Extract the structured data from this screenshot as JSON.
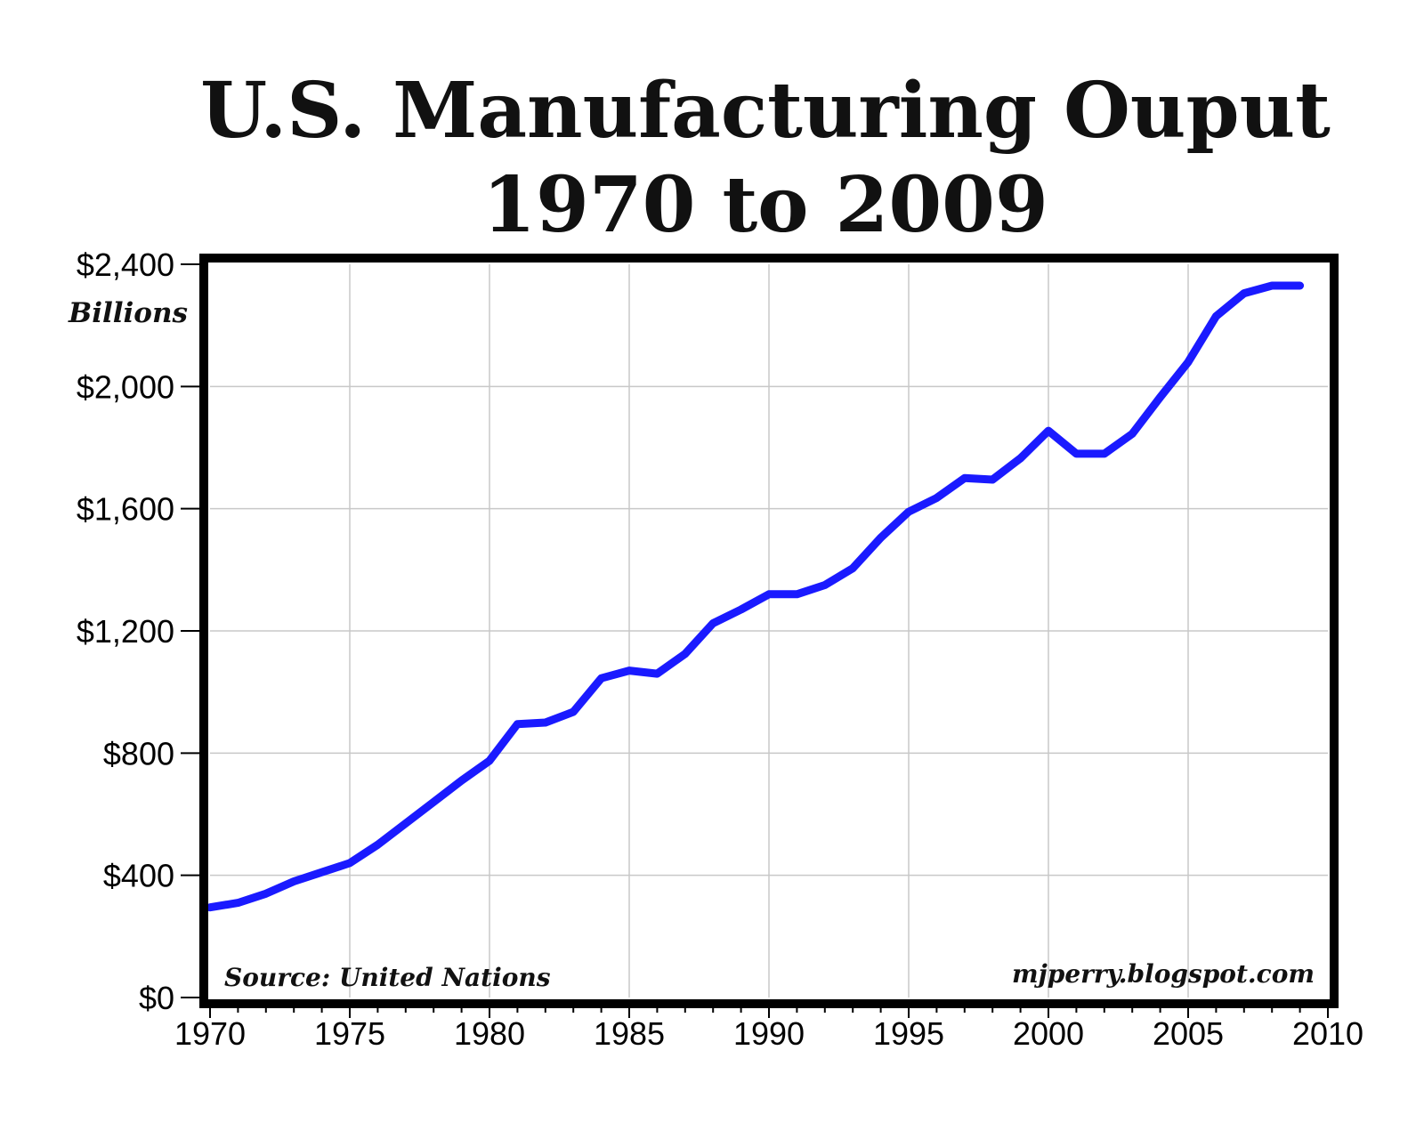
{
  "chart_data": {
    "type": "line",
    "title": "U.S. Manufacturing Ouput",
    "subtitle": "1970 to 2009",
    "ylabel": "Billions",
    "xlabel": "",
    "xlim": [
      1970,
      2010
    ],
    "ylim": [
      0,
      2400
    ],
    "x_ticks": [
      1970,
      1975,
      1980,
      1985,
      1990,
      1995,
      2000,
      2005,
      2010
    ],
    "x_tick_labels": [
      "1970",
      "1975",
      "1980",
      "1985",
      "1990",
      "1995",
      "2000",
      "2005",
      "2010"
    ],
    "y_ticks": [
      0,
      400,
      800,
      1200,
      1600,
      2000,
      2400
    ],
    "y_tick_labels": [
      "$0",
      "$400",
      "$800",
      "$1,200",
      "$1,600",
      "$2,000",
      "$2,400"
    ],
    "grid": true,
    "source_note": "Source: United Nations",
    "credit_note": "mjperry.blogspot.com",
    "line_color": "#1a1aff",
    "series": [
      {
        "x": [
          1970,
          1971,
          1972,
          1973,
          1974,
          1975,
          1976,
          1977,
          1978,
          1979,
          1980,
          1981,
          1982,
          1983,
          1984,
          1985,
          1986,
          1987,
          1988,
          1989,
          1990,
          1991,
          1992,
          1993,
          1994,
          1995,
          1996,
          1997,
          1998,
          1999,
          2000,
          2001,
          2002,
          2003,
          2004,
          2005,
          2006,
          2007,
          2008,
          2009
        ],
        "values": [
          295,
          310,
          340,
          380,
          410,
          440,
          500,
          570,
          640,
          710,
          775,
          895,
          900,
          935,
          1045,
          1070,
          1060,
          1125,
          1225,
          1270,
          1320,
          1320,
          1350,
          1405,
          1505,
          1590,
          1635,
          1700,
          1695,
          1765,
          1855,
          1780,
          1780,
          1845,
          1965,
          2080,
          2230,
          2305,
          2330,
          2330
        ]
      }
    ]
  }
}
